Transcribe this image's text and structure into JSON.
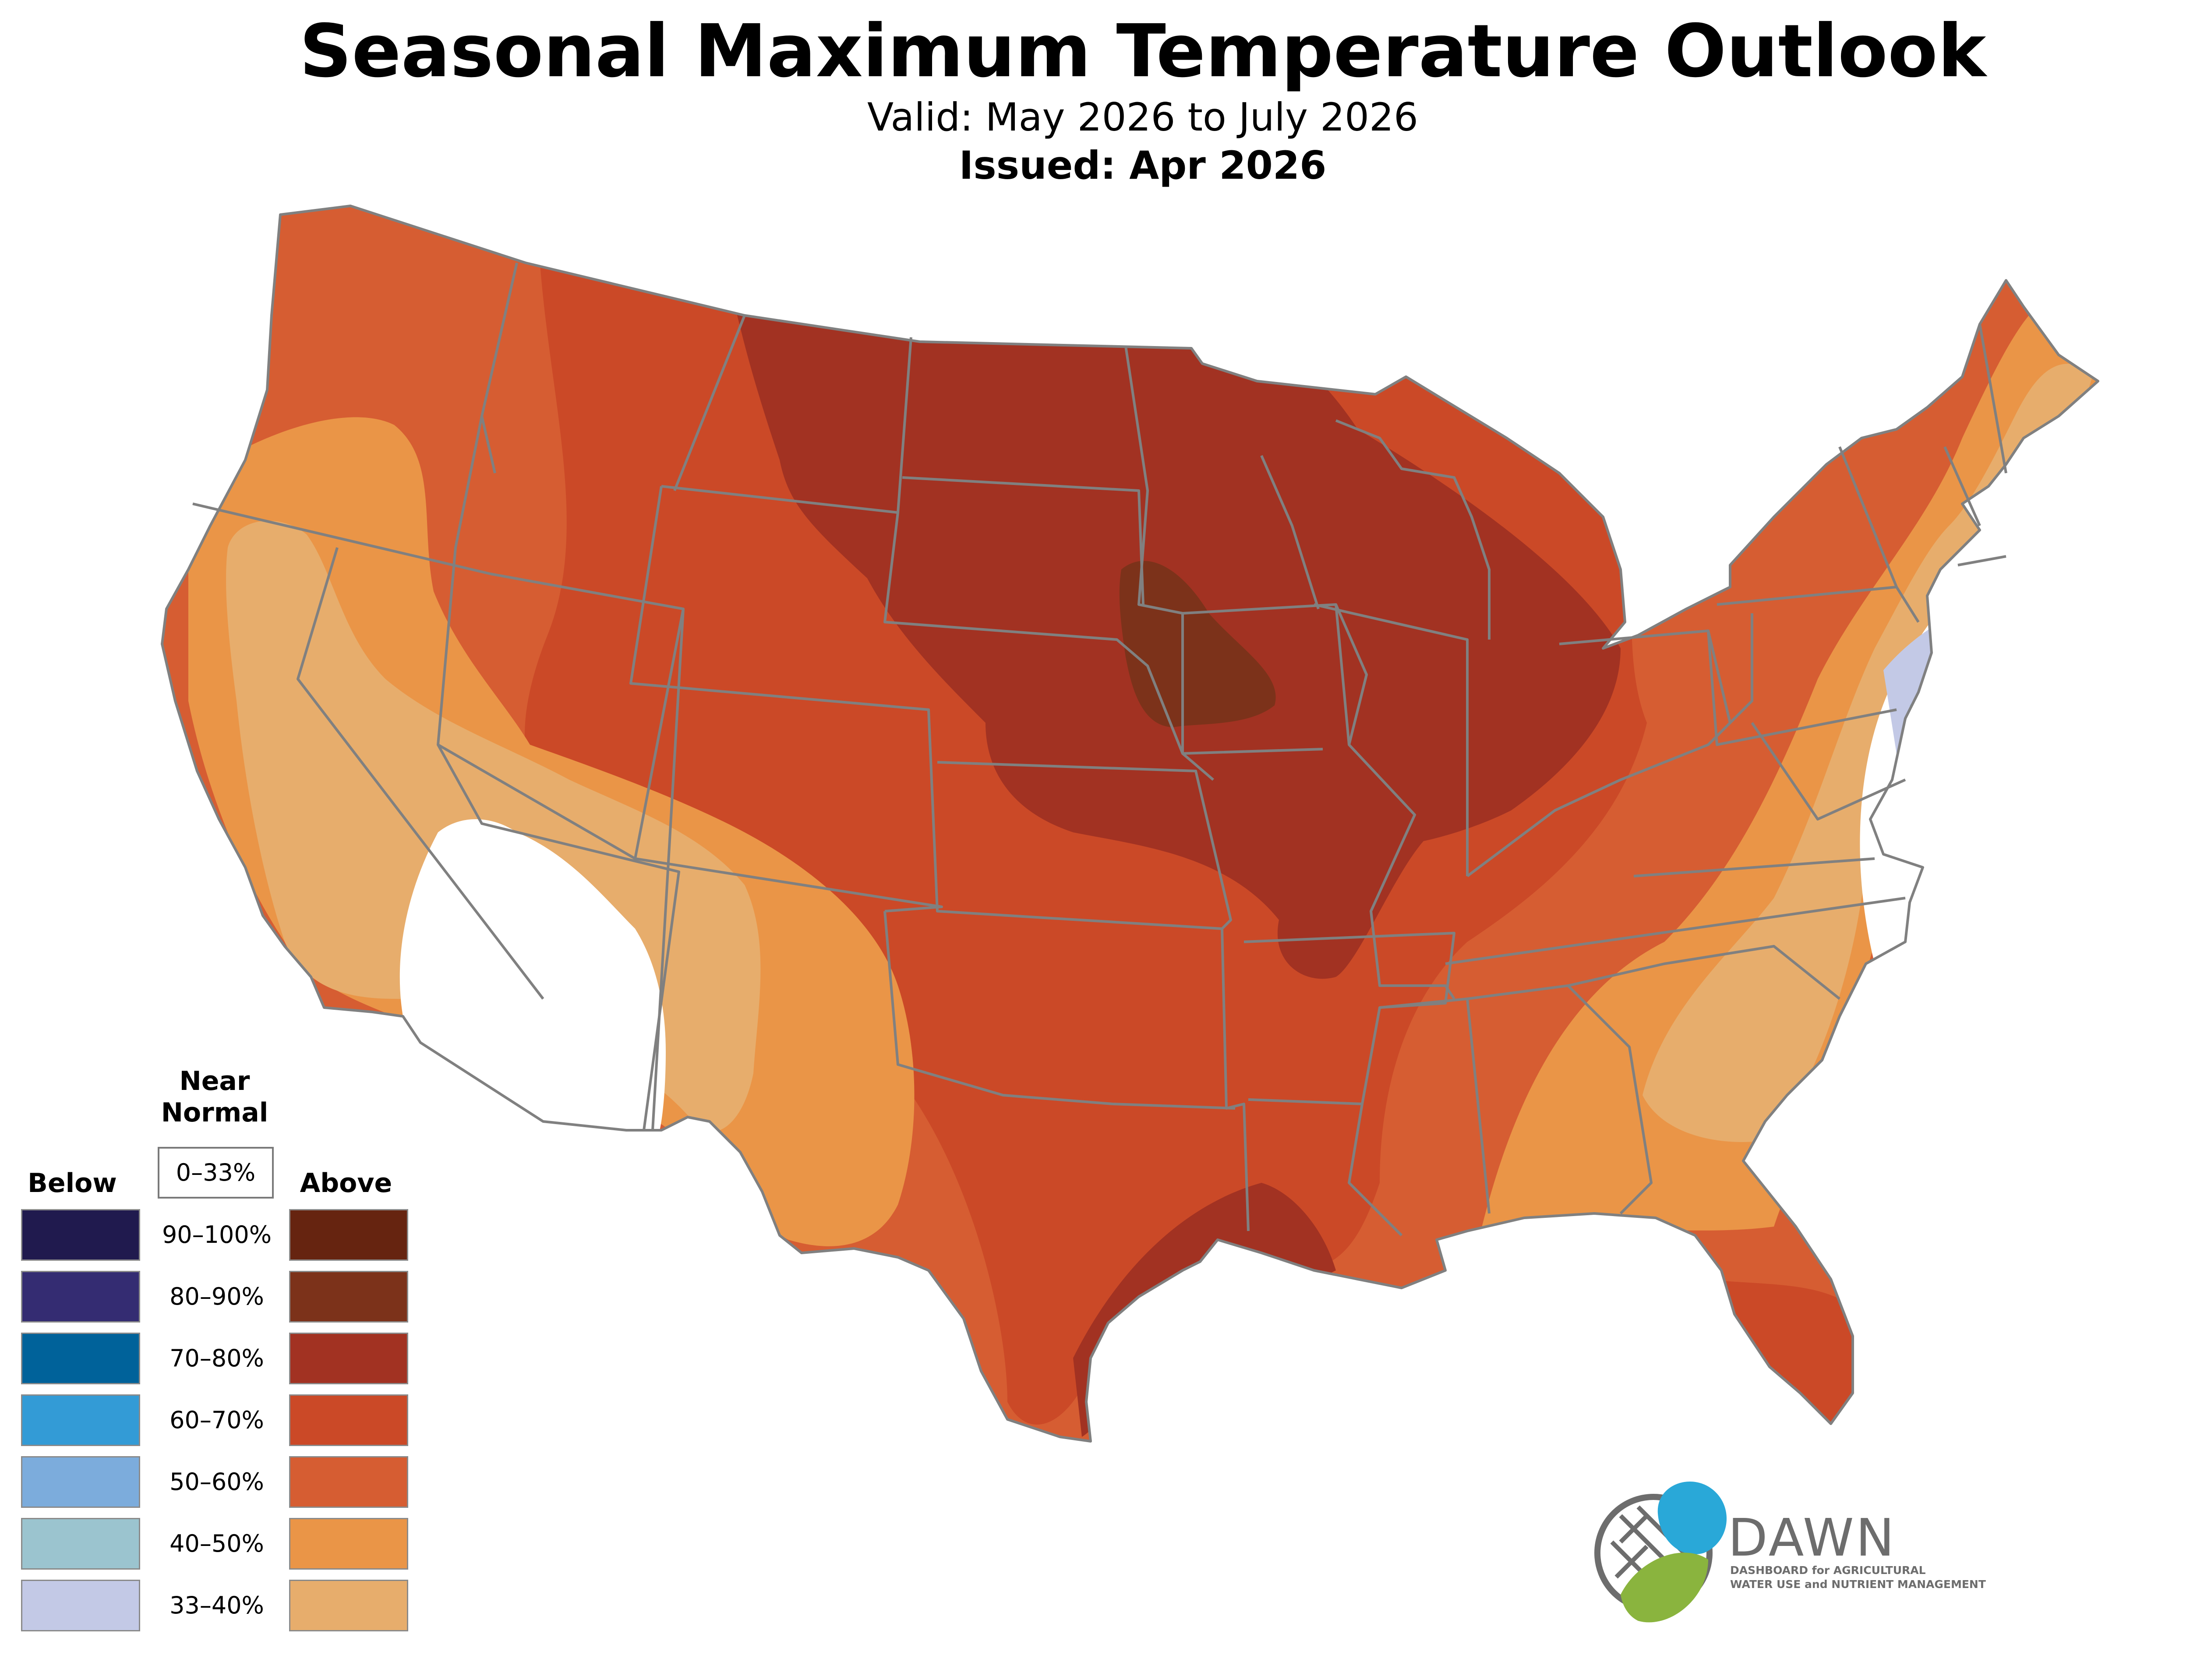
{
  "header": {
    "title": "Seasonal Maximum Temperature Outlook",
    "valid": "Valid: May 2026 to July 2026",
    "issued": "Issued: Apr 2026"
  },
  "legend": {
    "below_label": "Below",
    "above_label": "Above",
    "near_normal_label_line1": "Near",
    "near_normal_label_line2": "Normal",
    "near_normal_range": "0–33%",
    "rows": [
      {
        "range": "90–100%",
        "below_color": "#201a4e",
        "above_color": "#662410"
      },
      {
        "range": "80–90%",
        "below_color": "#342c72",
        "above_color": "#7c321a"
      },
      {
        "range": "70–80%",
        "below_color": "#00629a",
        "above_color": "#a23222"
      },
      {
        "range": "60–70%",
        "below_color": "#339bd6",
        "above_color": "#cb4927"
      },
      {
        "range": "50–60%",
        "below_color": "#7cacdc",
        "above_color": "#d65d32"
      },
      {
        "range": "40–50%",
        "below_color": "#9bc4cf",
        "above_color": "#ea9547"
      },
      {
        "range": "33–40%",
        "below_color": "#c3c9e6",
        "above_color": "#e7ad6c"
      }
    ]
  },
  "map": {
    "region": "Contiguous United States",
    "near_normal_color": "#ffffff",
    "boundary_color": "#808080"
  },
  "logo": {
    "name": "DAWN",
    "tagline_line1": "DASHBOARD for AGRICULTURAL",
    "tagline_line2": "WATER USE and NUTRIENT MANAGEMENT",
    "blue": "#29a8d8",
    "green": "#8ab43e",
    "gray": "#6d6d6d"
  }
}
